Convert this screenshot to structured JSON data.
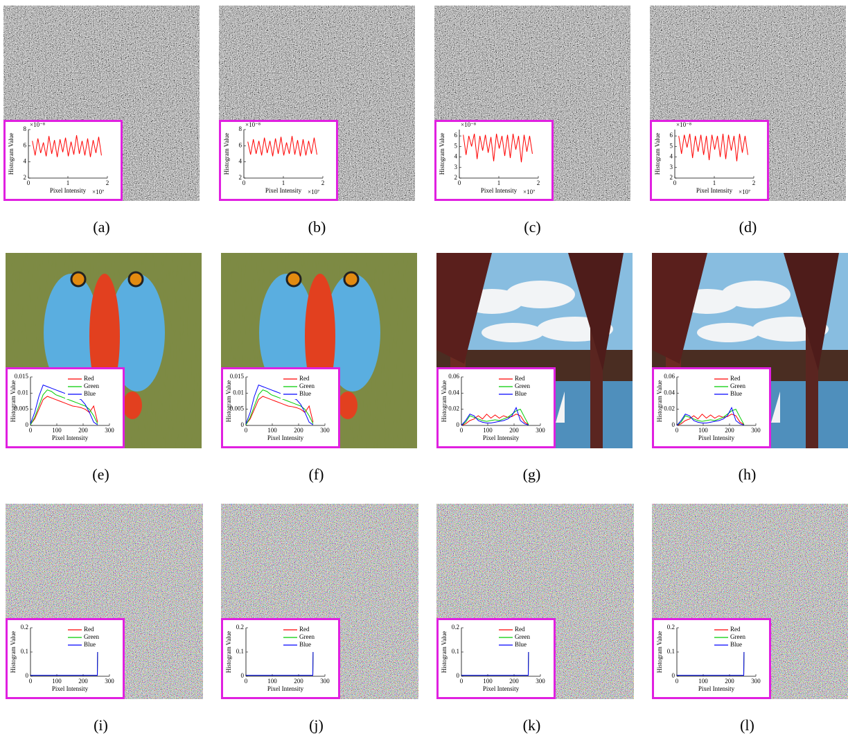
{
  "captions": [
    "(a)",
    "(b)",
    "(c)",
    "(d)",
    "(e)",
    "(f)",
    "(g)",
    "(h)",
    "(i)",
    "(j)",
    "(k)",
    "(l)"
  ],
  "chart_data": [
    {
      "type": "line",
      "xlabel": "Pixel Intensity",
      "ylabel": "Histogram Value",
      "x_multiplier": "×10⁷",
      "y_multiplier": "×10⁻⁸",
      "x": [
        0.1,
        0.17,
        0.24,
        0.31,
        0.38,
        0.45,
        0.52,
        0.59,
        0.66,
        0.73,
        0.8,
        0.87,
        0.94,
        1.01,
        1.08,
        1.15,
        1.22,
        1.29,
        1.36,
        1.43,
        1.5,
        1.57,
        1.64,
        1.71,
        1.78,
        1.85
      ],
      "series": [
        {
          "color": "#ff0000",
          "values": [
            6.6,
            4.8,
            6.9,
            5.1,
            6.4,
            4.7,
            7.2,
            5.0,
            6.7,
            4.6,
            6.8,
            5.2,
            7.0,
            4.7,
            6.5,
            4.9,
            7.3,
            5.0,
            6.6,
            4.8,
            6.9,
            4.6,
            6.7,
            5.1,
            7.1,
            4.8
          ]
        }
      ],
      "xlim": [
        0,
        2
      ],
      "xticks": [
        0,
        1,
        2
      ],
      "ylim": [
        2,
        8
      ],
      "yticks": [
        2,
        4,
        6,
        8
      ]
    },
    {
      "type": "line",
      "xlabel": "Pixel Intensity",
      "ylabel": "Histogram Value",
      "x_multiplier": "×10⁷",
      "y_multiplier": "×10⁻⁸",
      "x": [
        0.1,
        0.17,
        0.24,
        0.31,
        0.38,
        0.45,
        0.52,
        0.59,
        0.66,
        0.73,
        0.8,
        0.87,
        0.94,
        1.01,
        1.08,
        1.15,
        1.22,
        1.29,
        1.36,
        1.43,
        1.5,
        1.57,
        1.64,
        1.71,
        1.78,
        1.85
      ],
      "series": [
        {
          "color": "#ff0000",
          "values": [
            6.5,
            4.9,
            6.8,
            5.0,
            6.6,
            4.8,
            7.0,
            5.1,
            6.6,
            4.7,
            6.9,
            5.0,
            7.1,
            4.8,
            6.4,
            5.0,
            7.2,
            4.9,
            6.7,
            4.7,
            6.8,
            4.8,
            6.6,
            5.0,
            7.0,
            4.9
          ]
        }
      ],
      "xlim": [
        0,
        2
      ],
      "xticks": [
        0,
        1,
        2
      ],
      "ylim": [
        2,
        8
      ],
      "yticks": [
        2,
        4,
        6,
        8
      ]
    },
    {
      "type": "line",
      "xlabel": "Pixel Intensity",
      "ylabel": "Histogram Value",
      "x_multiplier": "×10⁷",
      "y_multiplier": "×10⁻⁸",
      "x": [
        0.1,
        0.17,
        0.24,
        0.31,
        0.38,
        0.45,
        0.52,
        0.59,
        0.66,
        0.73,
        0.8,
        0.87,
        0.94,
        1.01,
        1.08,
        1.15,
        1.22,
        1.29,
        1.36,
        1.43,
        1.5,
        1.57,
        1.64,
        1.71,
        1.78,
        1.85
      ],
      "series": [
        {
          "color": "#ff0000",
          "values": [
            6.1,
            4.2,
            6.0,
            5.0,
            6.2,
            3.8,
            6.0,
            4.6,
            6.1,
            4.4,
            5.9,
            3.6,
            6.2,
            4.8,
            6.0,
            4.1,
            6.1,
            3.9,
            6.2,
            4.7,
            6.0,
            3.5,
            6.1,
            4.5,
            6.0,
            4.3
          ]
        }
      ],
      "xlim": [
        0,
        2
      ],
      "xticks": [
        0,
        1,
        2
      ],
      "ylim": [
        2,
        6.6
      ],
      "yticks": [
        2,
        3,
        4,
        5,
        6
      ]
    },
    {
      "type": "line",
      "xlabel": "Pixel Intensity",
      "ylabel": "Histogram Value",
      "x_multiplier": "×10⁷",
      "y_multiplier": "×10⁻⁸",
      "x": [
        0.1,
        0.17,
        0.24,
        0.31,
        0.38,
        0.45,
        0.52,
        0.59,
        0.66,
        0.73,
        0.8,
        0.87,
        0.94,
        1.01,
        1.08,
        1.15,
        1.22,
        1.29,
        1.36,
        1.43,
        1.5,
        1.57,
        1.64,
        1.71,
        1.78,
        1.85
      ],
      "series": [
        {
          "color": "#ff0000",
          "values": [
            6.0,
            4.3,
            6.1,
            4.9,
            6.2,
            3.9,
            6.0,
            4.5,
            6.1,
            4.2,
            6.0,
            3.7,
            6.1,
            4.7,
            6.0,
            4.0,
            6.2,
            3.8,
            6.1,
            4.6,
            6.0,
            3.6,
            6.2,
            4.4,
            6.0,
            4.2
          ]
        }
      ],
      "xlim": [
        0,
        2
      ],
      "xticks": [
        0,
        1,
        2
      ],
      "ylim": [
        2,
        6.6
      ],
      "yticks": [
        2,
        3,
        4,
        5,
        6
      ]
    },
    {
      "type": "line",
      "xlabel": "Pixel Intensity",
      "ylabel": "Histogram Value",
      "legend": "upper right",
      "x": [
        0,
        16,
        32,
        48,
        64,
        80,
        96,
        112,
        128,
        144,
        160,
        176,
        192,
        208,
        224,
        240,
        255
      ],
      "series": [
        {
          "name": "Red",
          "color": "#ff0000",
          "values": [
            0.0003,
            0.002,
            0.005,
            0.008,
            0.009,
            0.0085,
            0.008,
            0.0075,
            0.007,
            0.0065,
            0.006,
            0.0058,
            0.0055,
            0.005,
            0.004,
            0.006,
            0.001
          ]
        },
        {
          "name": "Green",
          "color": "#00cc00",
          "values": [
            0.0002,
            0.0025,
            0.006,
            0.0095,
            0.011,
            0.0105,
            0.0095,
            0.009,
            0.0085,
            0.008,
            0.0075,
            0.007,
            0.0065,
            0.006,
            0.005,
            0.003,
            0.0005
          ]
        },
        {
          "name": "Blue",
          "color": "#0000ff",
          "values": [
            0.0005,
            0.004,
            0.009,
            0.0125,
            0.012,
            0.0115,
            0.011,
            0.0105,
            0.01,
            0.0095,
            0.009,
            0.0085,
            0.008,
            0.0065,
            0.004,
            0.001,
            0.0002
          ]
        }
      ],
      "xlim": [
        0,
        300
      ],
      "xticks": [
        0,
        100,
        200,
        300
      ],
      "ylim": [
        0,
        0.015
      ],
      "yticks": [
        0,
        0.005,
        0.01,
        0.015
      ]
    },
    {
      "type": "line",
      "xlabel": "Pixel Intensity",
      "ylabel": "Histogram Value",
      "legend": "upper right",
      "x": [
        0,
        16,
        32,
        48,
        64,
        80,
        96,
        112,
        128,
        144,
        160,
        176,
        192,
        208,
        224,
        240,
        255
      ],
      "series": [
        {
          "name": "Red",
          "color": "#ff0000",
          "values": [
            0.0003,
            0.002,
            0.005,
            0.008,
            0.009,
            0.0085,
            0.008,
            0.0075,
            0.007,
            0.0065,
            0.006,
            0.0058,
            0.0055,
            0.005,
            0.004,
            0.006,
            0.001
          ]
        },
        {
          "name": "Green",
          "color": "#00cc00",
          "values": [
            0.0002,
            0.0025,
            0.006,
            0.0095,
            0.011,
            0.0105,
            0.0095,
            0.009,
            0.0085,
            0.008,
            0.0075,
            0.007,
            0.0065,
            0.006,
            0.005,
            0.003,
            0.0005
          ]
        },
        {
          "name": "Blue",
          "color": "#0000ff",
          "values": [
            0.0005,
            0.004,
            0.009,
            0.0125,
            0.012,
            0.0115,
            0.011,
            0.0105,
            0.01,
            0.0095,
            0.009,
            0.0085,
            0.008,
            0.0065,
            0.004,
            0.001,
            0.0002
          ]
        }
      ],
      "xlim": [
        0,
        300
      ],
      "xticks": [
        0,
        100,
        200,
        300
      ],
      "ylim": [
        0,
        0.015
      ],
      "yticks": [
        0,
        0.005,
        0.01,
        0.015
      ]
    },
    {
      "type": "line",
      "xlabel": "Pixel Intensity",
      "ylabel": "Histogram Value",
      "legend": "upper right",
      "x": [
        0,
        16,
        32,
        48,
        64,
        80,
        96,
        112,
        128,
        144,
        160,
        176,
        192,
        208,
        224,
        240,
        255
      ],
      "series": [
        {
          "name": "Red",
          "color": "#ff0000",
          "values": [
            0,
            0.002,
            0.006,
            0.008,
            0.012,
            0.008,
            0.014,
            0.009,
            0.013,
            0.009,
            0.012,
            0.01,
            0.011,
            0.014,
            0.012,
            0.004,
            0.001
          ]
        },
        {
          "name": "Green",
          "color": "#00cc00",
          "values": [
            0,
            0.004,
            0.012,
            0.01,
            0.008,
            0.006,
            0.005,
            0.006,
            0.007,
            0.006,
            0.008,
            0.01,
            0.014,
            0.018,
            0.02,
            0.01,
            0.001
          ]
        },
        {
          "name": "Blue",
          "color": "#0000ff",
          "values": [
            0,
            0.006,
            0.014,
            0.012,
            0.006,
            0.004,
            0.003,
            0.003,
            0.004,
            0.005,
            0.006,
            0.008,
            0.012,
            0.022,
            0.006,
            0.002,
            0.0005
          ]
        }
      ],
      "xlim": [
        0,
        300
      ],
      "xticks": [
        0,
        100,
        200,
        300
      ],
      "ylim": [
        0,
        0.06
      ],
      "yticks": [
        0,
        0.02,
        0.04,
        0.06
      ]
    },
    {
      "type": "line",
      "xlabel": "Pixel Intensity",
      "ylabel": "Histogram Value",
      "legend": "upper right",
      "x": [
        0,
        16,
        32,
        48,
        64,
        80,
        96,
        112,
        128,
        144,
        160,
        176,
        192,
        208,
        224,
        240,
        255
      ],
      "series": [
        {
          "name": "Red",
          "color": "#ff0000",
          "values": [
            0,
            0.002,
            0.006,
            0.008,
            0.012,
            0.008,
            0.014,
            0.009,
            0.013,
            0.009,
            0.012,
            0.01,
            0.011,
            0.014,
            0.012,
            0.004,
            0.001
          ]
        },
        {
          "name": "Green",
          "color": "#00cc00",
          "values": [
            0,
            0.004,
            0.012,
            0.01,
            0.008,
            0.006,
            0.005,
            0.006,
            0.007,
            0.006,
            0.008,
            0.01,
            0.014,
            0.018,
            0.02,
            0.01,
            0.001
          ]
        },
        {
          "name": "Blue",
          "color": "#0000ff",
          "values": [
            0,
            0.006,
            0.014,
            0.012,
            0.006,
            0.004,
            0.003,
            0.003,
            0.004,
            0.005,
            0.006,
            0.008,
            0.012,
            0.022,
            0.006,
            0.002,
            0.0005
          ]
        }
      ],
      "xlim": [
        0,
        300
      ],
      "xticks": [
        0,
        100,
        200,
        300
      ],
      "ylim": [
        0,
        0.06
      ],
      "yticks": [
        0,
        0.02,
        0.04,
        0.06
      ]
    },
    {
      "type": "line",
      "xlabel": "Pixel Intensity",
      "ylabel": "Histogram Value",
      "legend": "upper right",
      "x": [
        0,
        64,
        128,
        192,
        254,
        255
      ],
      "series": [
        {
          "name": "Red",
          "color": "#ff0000",
          "values": [
            0.0039,
            0.0039,
            0.0039,
            0.0039,
            0.0039,
            0.1
          ]
        },
        {
          "name": "Green",
          "color": "#00cc00",
          "values": [
            0.0039,
            0.0039,
            0.0039,
            0.0039,
            0.0039,
            0.1
          ]
        },
        {
          "name": "Blue",
          "color": "#0000ff",
          "values": [
            0.0039,
            0.0039,
            0.0039,
            0.0039,
            0.0039,
            0.1
          ]
        }
      ],
      "xlim": [
        0,
        300
      ],
      "xticks": [
        0,
        100,
        200,
        300
      ],
      "ylim": [
        0,
        0.2
      ],
      "yticks": [
        0,
        0.1,
        0.2
      ]
    },
    {
      "type": "line",
      "xlabel": "Pixel Intensity",
      "ylabel": "Histogram Value",
      "legend": "upper right",
      "x": [
        0,
        64,
        128,
        192,
        254,
        255
      ],
      "series": [
        {
          "name": "Red",
          "color": "#ff0000",
          "values": [
            0.0039,
            0.0039,
            0.0039,
            0.0039,
            0.0039,
            0.1
          ]
        },
        {
          "name": "Green",
          "color": "#00cc00",
          "values": [
            0.0039,
            0.0039,
            0.0039,
            0.0039,
            0.0039,
            0.1
          ]
        },
        {
          "name": "Blue",
          "color": "#0000ff",
          "values": [
            0.0039,
            0.0039,
            0.0039,
            0.0039,
            0.0039,
            0.1
          ]
        }
      ],
      "xlim": [
        0,
        300
      ],
      "xticks": [
        0,
        100,
        200,
        300
      ],
      "ylim": [
        0,
        0.2
      ],
      "yticks": [
        0,
        0.1,
        0.2
      ]
    },
    {
      "type": "line",
      "xlabel": "Pixel Intensity",
      "ylabel": "Histogram Value",
      "legend": "upper right",
      "x": [
        0,
        64,
        128,
        192,
        254,
        255
      ],
      "series": [
        {
          "name": "Red",
          "color": "#ff0000",
          "values": [
            0.0039,
            0.0039,
            0.0039,
            0.0039,
            0.0039,
            0.1
          ]
        },
        {
          "name": "Green",
          "color": "#00cc00",
          "values": [
            0.0039,
            0.0039,
            0.0039,
            0.0039,
            0.0039,
            0.1
          ]
        },
        {
          "name": "Blue",
          "color": "#0000ff",
          "values": [
            0.0039,
            0.0039,
            0.0039,
            0.0039,
            0.0039,
            0.1
          ]
        }
      ],
      "xlim": [
        0,
        300
      ],
      "xticks": [
        0,
        100,
        200,
        300
      ],
      "ylim": [
        0,
        0.2
      ],
      "yticks": [
        0,
        0.1,
        0.2
      ]
    },
    {
      "type": "line",
      "xlabel": "Pixel Intensity",
      "ylabel": "Histogram Value",
      "legend": "upper right",
      "x": [
        0,
        64,
        128,
        192,
        254,
        255
      ],
      "series": [
        {
          "name": "Red",
          "color": "#ff0000",
          "values": [
            0.0039,
            0.0039,
            0.0039,
            0.0039,
            0.0039,
            0.1
          ]
        },
        {
          "name": "Green",
          "color": "#00cc00",
          "values": [
            0.0039,
            0.0039,
            0.0039,
            0.0039,
            0.0039,
            0.1
          ]
        },
        {
          "name": "Blue",
          "color": "#0000ff",
          "values": [
            0.0039,
            0.0039,
            0.0039,
            0.0039,
            0.0039,
            0.1
          ]
        }
      ],
      "xlim": [
        0,
        300
      ],
      "xticks": [
        0,
        100,
        200,
        300
      ],
      "ylim": [
        0,
        0.2
      ],
      "yticks": [
        0,
        0.1,
        0.2
      ]
    }
  ]
}
